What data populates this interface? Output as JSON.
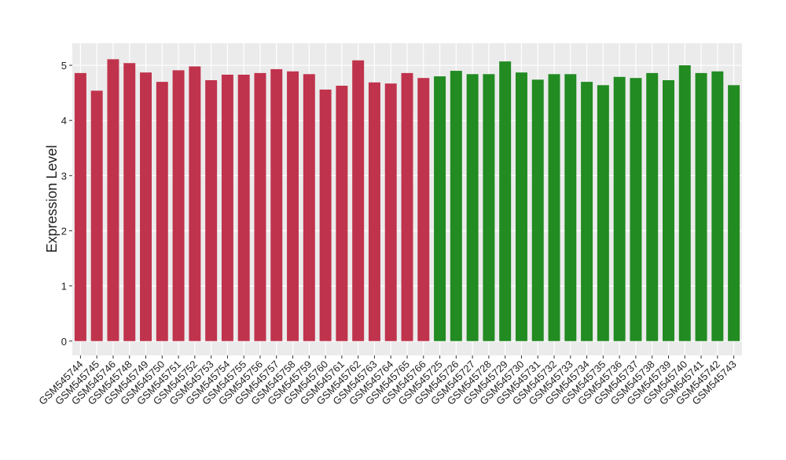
{
  "chart_data": {
    "type": "bar",
    "ylabel": "Expression Level",
    "categories": [
      "GSM545744",
      "GSM545745",
      "GSM545746",
      "GSM545748",
      "GSM545749",
      "GSM545750",
      "GSM545751",
      "GSM545752",
      "GSM545753",
      "GSM545754",
      "GSM545755",
      "GSM545756",
      "GSM545757",
      "GSM545758",
      "GSM545759",
      "GSM545760",
      "GSM545761",
      "GSM545762",
      "GSM545763",
      "GSM545764",
      "GSM545765",
      "GSM545766",
      "GSM545725",
      "GSM545726",
      "GSM545727",
      "GSM545728",
      "GSM545729",
      "GSM545730",
      "GSM545731",
      "GSM545732",
      "GSM545733",
      "GSM545734",
      "GSM545735",
      "GSM545736",
      "GSM545737",
      "GSM545738",
      "GSM545739",
      "GSM545740",
      "GSM545741",
      "GSM545742",
      "GSM545743"
    ],
    "values": [
      4.86,
      4.54,
      5.11,
      5.04,
      4.87,
      4.7,
      4.91,
      4.98,
      4.73,
      4.83,
      4.83,
      4.86,
      4.93,
      4.89,
      4.84,
      4.56,
      4.63,
      5.09,
      4.69,
      4.67,
      4.86,
      4.77,
      4.8,
      4.9,
      4.84,
      4.84,
      5.07,
      4.87,
      4.74,
      4.84,
      4.84,
      4.7,
      4.64,
      4.79,
      4.77,
      4.86,
      4.73,
      5.0,
      4.86,
      4.89,
      4.64
    ],
    "colors": [
      "#c0334d",
      "#c0334d",
      "#c0334d",
      "#c0334d",
      "#c0334d",
      "#c0334d",
      "#c0334d",
      "#c0334d",
      "#c0334d",
      "#c0334d",
      "#c0334d",
      "#c0334d",
      "#c0334d",
      "#c0334d",
      "#c0334d",
      "#c0334d",
      "#c0334d",
      "#c0334d",
      "#c0334d",
      "#c0334d",
      "#c0334d",
      "#c0334d",
      "#228b22",
      "#228b22",
      "#228b22",
      "#228b22",
      "#228b22",
      "#228b22",
      "#228b22",
      "#228b22",
      "#228b22",
      "#228b22",
      "#228b22",
      "#228b22",
      "#228b22",
      "#228b22",
      "#228b22",
      "#228b22",
      "#228b22",
      "#228b22",
      "#228b22"
    ],
    "ylim": [
      -0.26,
      5.4
    ],
    "yticks": [
      0,
      1,
      2,
      3,
      4,
      5
    ],
    "grid": true
  }
}
